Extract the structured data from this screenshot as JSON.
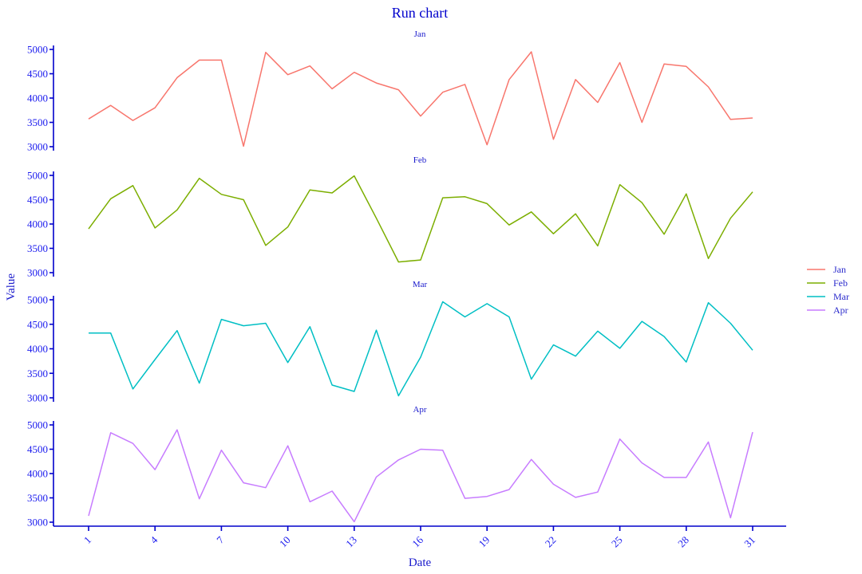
{
  "chart_data": {
    "type": "line",
    "title": "Run chart",
    "xlabel": "Date",
    "ylabel": "Value",
    "layout": "facets stacked vertically, one panel per series, shared x axis",
    "grid": false,
    "legend_position": "right",
    "ylim": [
      3000,
      5000
    ],
    "yticks": [
      3000,
      3500,
      4000,
      4500,
      5000
    ],
    "xlim": [
      1,
      31
    ],
    "xticks": [
      1,
      4,
      7,
      10,
      13,
      16,
      19,
      22,
      25,
      28,
      31
    ],
    "x": [
      1,
      2,
      3,
      4,
      5,
      6,
      7,
      8,
      9,
      10,
      11,
      12,
      13,
      14,
      15,
      16,
      17,
      18,
      19,
      20,
      21,
      22,
      23,
      24,
      25,
      26,
      27,
      28,
      29,
      30,
      31
    ],
    "series": [
      {
        "name": "Jan",
        "color": "#F8766D",
        "values": [
          3570,
          3850,
          3540,
          3800,
          4420,
          4780,
          4780,
          3010,
          4940,
          4480,
          4660,
          4190,
          4530,
          4310,
          4170,
          3630,
          4120,
          4280,
          3040,
          4380,
          4950,
          3150,
          4380,
          3910,
          4730,
          3500,
          4700,
          4650,
          4230,
          3560,
          3590
        ]
      },
      {
        "name": "Feb",
        "color": "#7CAE00",
        "values": [
          3900,
          4520,
          4790,
          3920,
          4290,
          4940,
          4610,
          4500,
          3560,
          3940,
          4700,
          4640,
          4990,
          4120,
          3220,
          3260,
          4540,
          4560,
          4420,
          3980,
          4250,
          3800,
          4210,
          3550,
          4810,
          4440,
          3790,
          4620,
          3290,
          4120,
          4660
        ]
      },
      {
        "name": "Mar",
        "color": "#00BFC4",
        "values": [
          4320,
          4320,
          3180,
          3780,
          4370,
          3300,
          4600,
          4470,
          4520,
          3720,
          4450,
          3260,
          3130,
          4380,
          3040,
          3830,
          4960,
          4650,
          4920,
          4650,
          3380,
          4080,
          3850,
          4360,
          4010,
          4560,
          4250,
          3730,
          4940,
          4520,
          3970
        ]
      },
      {
        "name": "Apr",
        "color": "#C77CFF",
        "values": [
          3130,
          4840,
          4620,
          4080,
          4900,
          3480,
          4480,
          3810,
          3710,
          4570,
          3420,
          3640,
          3010,
          3930,
          4280,
          4500,
          4480,
          3490,
          3530,
          3670,
          4290,
          3780,
          3510,
          3620,
          4710,
          4220,
          3920,
          3920,
          4650,
          3090,
          4850
        ]
      }
    ]
  },
  "legend": {
    "items": [
      {
        "label": "Jan",
        "color": "#F8766D"
      },
      {
        "label": "Feb",
        "color": "#7CAE00"
      },
      {
        "label": "Mar",
        "color": "#00BFC4"
      },
      {
        "label": "Apr",
        "color": "#C77CFF"
      }
    ]
  }
}
